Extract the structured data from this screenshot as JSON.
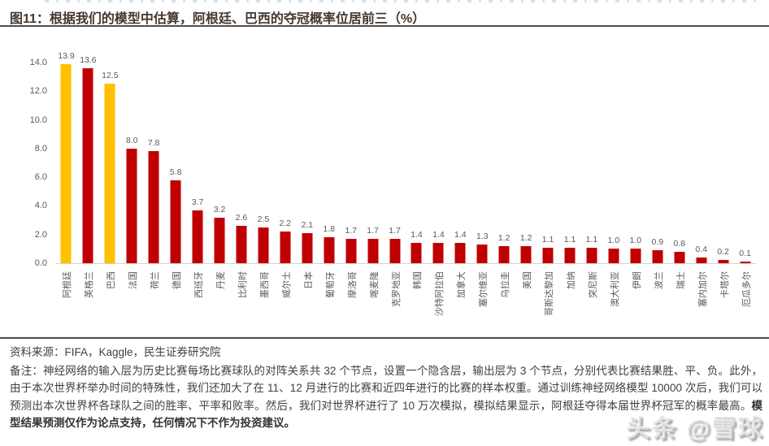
{
  "header": {
    "title": "图11：根据我们的模型中估算，阿根廷、巴西的夺冠概率位居前三（%）"
  },
  "chart_data": {
    "type": "bar",
    "title": "图11：根据我们的模型中估算，阿根廷、巴西的夺冠概率位居前三（%）",
    "categories": [
      "阿根廷",
      "英格兰",
      "巴西",
      "法国",
      "荷兰",
      "德国",
      "西班牙",
      "丹麦",
      "比利时",
      "墨西哥",
      "威尔士",
      "日本",
      "葡萄牙",
      "摩洛哥",
      "喀麦隆",
      "克罗地亚",
      "韩国",
      "沙特阿拉伯",
      "加拿大",
      "塞尔维亚",
      "乌拉圭",
      "美国",
      "哥斯达黎加",
      "加纳",
      "突尼斯",
      "澳大利亚",
      "伊朗",
      "波兰",
      "瑞士",
      "塞内加尔",
      "卡塔尔",
      "厄瓜多尔"
    ],
    "values": [
      13.9,
      13.6,
      12.5,
      8.0,
      7.8,
      5.8,
      3.7,
      3.2,
      2.6,
      2.5,
      2.2,
      2.1,
      1.8,
      1.7,
      1.7,
      1.7,
      1.4,
      1.4,
      1.4,
      1.3,
      1.2,
      1.2,
      1.1,
      1.1,
      1.1,
      1.0,
      1.0,
      0.9,
      0.8,
      0.4,
      0.2,
      0.1
    ],
    "value_labels_shown": true,
    "highlight_indices": [
      0,
      2
    ],
    "colors": {
      "default": "#C00000",
      "highlight": "#FFC000"
    },
    "xlabel": "",
    "ylabel": "",
    "ylim": [
      0,
      14
    ],
    "yticks": [
      "14.0",
      "12.0",
      "10.0",
      "8.0",
      "6.0",
      "4.0",
      "2.0",
      "0.0"
    ],
    "grid": false,
    "legend_position": "none"
  },
  "footer": {
    "source": "资料来源：FIFA，Kaggle，民生证券研究院",
    "note_prefix": "备注：",
    "note": "神经网络的输入层为历史比赛每场比赛球队的对阵关系共 32 个节点，设置一个隐含层，输出层为 3 个节点，分别代表比赛结果胜、平、负。此外，由于本次世界杯举办时间的特殊性，我们还加大了在 11、12 月进行的比赛和近四年进行的比赛的样本权重。通过训练神经网络模型 10000 次后，我们可以预测出本次世界杯各球队之间的胜率、平率和败率。然后，我们对世界杯进行了 10 万次模拟，模拟结果显示，阿根廷夺得本届世界杯冠军的概率最高。",
    "note_bold": "模型结果预测仅作为论点支持，任何情况下不作为投资建议。"
  },
  "watermark": {
    "text": "头条 @雪球"
  }
}
